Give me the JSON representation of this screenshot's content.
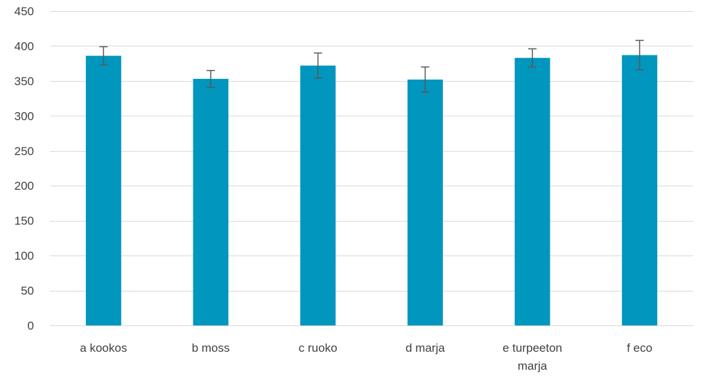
{
  "chart_data": {
    "type": "bar",
    "categories": [
      "a kookos",
      "b moss",
      "c ruoko",
      "d marja",
      "e turpeeton marja",
      "f eco"
    ],
    "category_lines": [
      [
        "a kookos"
      ],
      [
        "b moss"
      ],
      [
        "c ruoko"
      ],
      [
        "d marja"
      ],
      [
        "e turpeeton",
        "marja"
      ],
      [
        "f eco"
      ]
    ],
    "values": [
      386,
      353,
      372,
      352,
      383,
      387
    ],
    "error_low": [
      373,
      341,
      354,
      334,
      370,
      366
    ],
    "error_high": [
      399,
      365,
      390,
      370,
      396,
      408
    ],
    "yticks": [
      0,
      50,
      100,
      150,
      200,
      250,
      300,
      350,
      400,
      450
    ],
    "ylim": [
      0,
      450
    ],
    "title": "",
    "xlabel": "",
    "ylabel": "",
    "grid": true,
    "legend": "none",
    "colors": {
      "bar": "#0096BD",
      "grid": "#D9D9D9",
      "error_bar": "#595959",
      "axis": "#D9D9D9"
    }
  }
}
